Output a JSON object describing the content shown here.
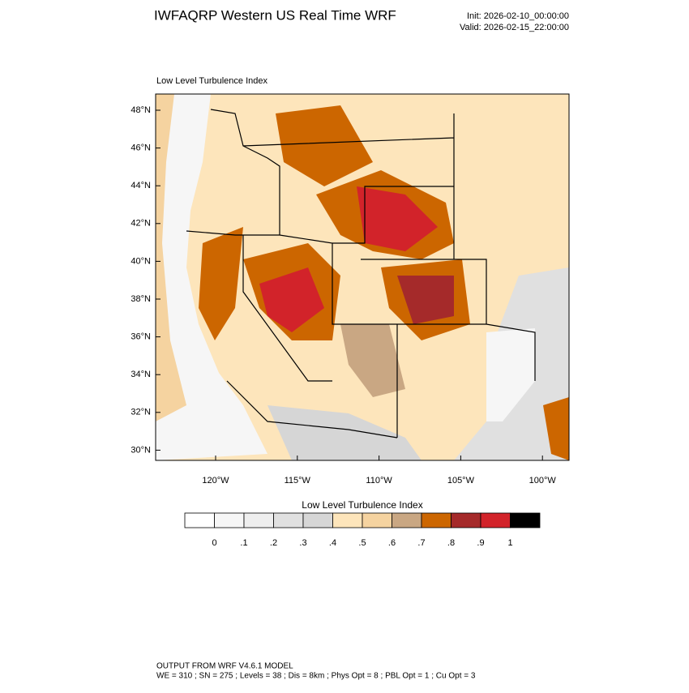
{
  "header": {
    "title": "IWFAQRP Western US Real Time WRF",
    "init": "Init: 2026-02-10_00:00:00",
    "valid": "Valid: 2026-02-15_22:00:00"
  },
  "map": {
    "title": "Low Level Turbulence Index",
    "lat_labels": [
      "48°N",
      "46°N",
      "44°N",
      "42°N",
      "40°N",
      "38°N",
      "36°N",
      "34°N",
      "32°N",
      "30°N"
    ],
    "lon_labels": [
      "120°W",
      "115°W",
      "110°W",
      "105°W",
      "100°W"
    ]
  },
  "colorbar": {
    "title": "Low Level Turbulence Index",
    "colors": [
      "#ffffff",
      "#f6f6f6",
      "#eeeeee",
      "#e0e0e0",
      "#d6d6d6",
      "#fde5bb",
      "#f5d3a0",
      "#c9a783",
      "#cc6600",
      "#a52a2a",
      "#d2232a",
      "#000000"
    ],
    "labels": [
      "0",
      ".1",
      ".2",
      ".3",
      ".4",
      ".5",
      ".6",
      ".7",
      ".8",
      ".9",
      "1"
    ]
  },
  "footer": {
    "line1": "OUTPUT FROM WRF V4.6.1 MODEL",
    "line2": "WE = 310 ; SN = 275 ; Levels = 38 ; Dis = 8km ; Phys Opt = 8 ; PBL Opt = 1 ; Cu Opt = 3"
  }
}
